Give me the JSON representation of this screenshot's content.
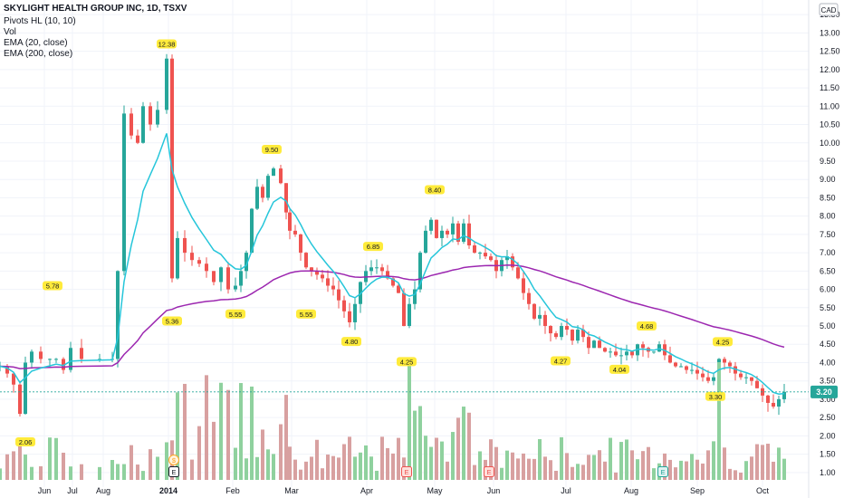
{
  "header": {
    "title": "SKYLIGHT HEALTH GROUP INC, 1D, TSXV",
    "indicators": [
      "Pivots HL (10, 10)",
      "Vol",
      "EMA (20, close)",
      "EMA (200, close)"
    ]
  },
  "currency": "CAD",
  "last_price_label": "3.20",
  "colors": {
    "up": "#26a69a",
    "down": "#ef5350",
    "vol_up": "#8fd19e",
    "vol_down": "#d8a0a0",
    "ema20": "#26c6da",
    "ema200": "#9c27b0",
    "pivot_bg": "#ffeb3b",
    "last_price_bg": "#26a69a",
    "grid": "#f0f3fa",
    "axis_text": "#131722"
  },
  "events": [
    {
      "icon": "dividend-icon",
      "symbol": "$",
      "date": "Jan 1"
    },
    {
      "icon": "earnings-icon",
      "symbol": "E",
      "date": "Jan 1"
    },
    {
      "icon": "earnings-icon",
      "symbol": "E",
      "date": "Apr 20"
    },
    {
      "icon": "earnings-icon",
      "symbol": "E",
      "date": "May 28"
    },
    {
      "icon": "split-icon",
      "symbol": "E",
      "date": "Aug 12"
    }
  ],
  "chart_data": {
    "type": "candlestick",
    "title": "SKYLIGHT HEALTH GROUP INC, 1D, TSXV",
    "y_axis": {
      "position": "right",
      "ticks": [
        "13.50",
        "13.00",
        "12.50",
        "12.00",
        "11.50",
        "11.00",
        "10.50",
        "10.00",
        "9.50",
        "9.00",
        "8.50",
        "8.00",
        "7.50",
        "7.00",
        "6.50",
        "6.00",
        "5.50",
        "5.00",
        "4.50",
        "4.00",
        "3.50",
        "3.00",
        "2.50",
        "2.00",
        "1.50",
        "1.00"
      ],
      "range": [
        0.6,
        13.9
      ]
    },
    "x_axis": {
      "tick_labels": [
        "Jun",
        "Jul",
        "Aug",
        "2014",
        "Feb",
        "Mar",
        "Apr",
        "May",
        "Jun",
        "Jul",
        "Aug",
        "Sep",
        "Oct"
      ]
    },
    "pivots": [
      {
        "label": "12.38",
        "date": "Dec 29",
        "price": 12.38,
        "type": "high"
      },
      {
        "label": "9.50",
        "date": "Feb 12",
        "price": 9.5,
        "type": "high"
      },
      {
        "label": "6.85",
        "date": "Apr 3",
        "price": 6.85,
        "type": "high"
      },
      {
        "label": "8.40",
        "date": "Apr 29",
        "price": 8.4,
        "type": "high"
      },
      {
        "label": "4.68",
        "date": "Aug 10",
        "price": 4.68,
        "type": "high"
      },
      {
        "label": "4.25",
        "date": "Sep 11",
        "price": 4.25,
        "type": "high"
      },
      {
        "label": "5.78",
        "date": "May 18",
        "price": 5.78,
        "type": "high"
      },
      {
        "label": "2.06",
        "date": "May 1",
        "price": 2.06,
        "type": "low"
      },
      {
        "label": "5.36",
        "date": "Jan 5",
        "price": 5.36,
        "type": "low"
      },
      {
        "label": "5.55",
        "date": "Feb 4",
        "price": 5.55,
        "type": "low"
      },
      {
        "label": "5.55",
        "date": "Mar 11",
        "price": 5.55,
        "type": "low"
      },
      {
        "label": "4.80",
        "date": "Mar 28",
        "price": 4.8,
        "type": "low"
      },
      {
        "label": "4.25",
        "date": "Apr 24",
        "price": 4.25,
        "type": "low"
      },
      {
        "label": "4.27",
        "date": "Jun 28",
        "price": 4.27,
        "type": "low"
      },
      {
        "label": "4.04",
        "date": "Jul 30",
        "price": 4.04,
        "type": "low"
      },
      {
        "label": "3.30",
        "date": "Sep 8",
        "price": 3.3,
        "type": "low"
      }
    ],
    "last_price": 3.2,
    "series": [
      {
        "name": "EMA (20, close)",
        "values_desc": "short-term moving average"
      },
      {
        "name": "EMA (200, close)",
        "values_desc": "long-term moving average"
      }
    ]
  }
}
